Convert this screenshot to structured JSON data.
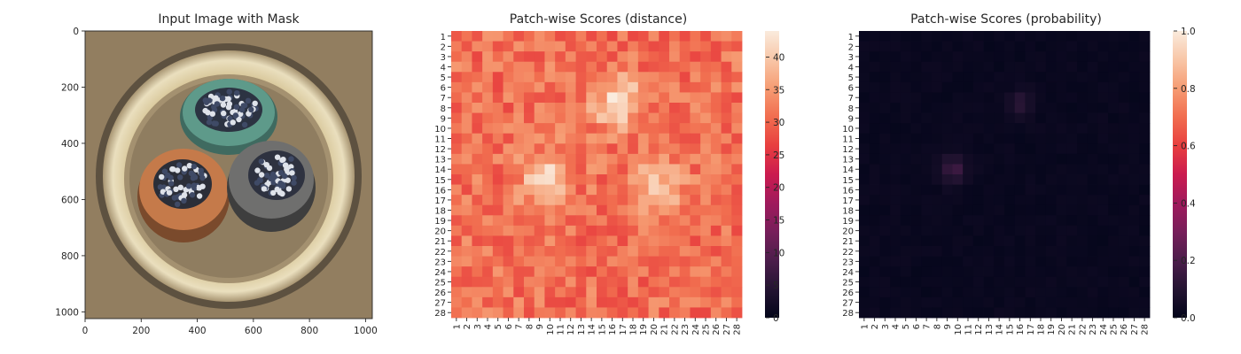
{
  "figure": {
    "panels": [
      {
        "title": "Input Image with Mask",
        "type": "image",
        "x_ticks": [
          "0",
          "200",
          "400",
          "600",
          "800",
          "1000"
        ],
        "y_ticks": [
          "0",
          "200",
          "400",
          "600",
          "800",
          "1000"
        ],
        "colors": {
          "background": "#9a8466",
          "ring_outer": "#6b5d47",
          "ring": "#e6d9b0",
          "cable_teal": "#5e9a8a",
          "cable_orange": "#c57a4a",
          "cable_gray": "#6f6f6e"
        }
      },
      {
        "title": "Patch-wise Scores (distance)",
        "type": "heatmap",
        "row_labels": [
          "1",
          "2",
          "3",
          "4",
          "5",
          "6",
          "7",
          "8",
          "9",
          "10",
          "11",
          "12",
          "13",
          "14",
          "15",
          "16",
          "17",
          "18",
          "19",
          "20",
          "21",
          "22",
          "23",
          "24",
          "25",
          "26",
          "27",
          "28"
        ],
        "col_labels": [
          "1",
          "2",
          "3",
          "4",
          "5",
          "6",
          "7",
          "8",
          "9",
          "10",
          "11",
          "12",
          "13",
          "14",
          "15",
          "16",
          "17",
          "18",
          "19",
          "20",
          "21",
          "22",
          "23",
          "24",
          "25",
          "26",
          "27",
          "28"
        ],
        "colorbar_ticks": [
          "0",
          "5",
          "10",
          "15",
          "20",
          "25",
          "30",
          "35",
          "40"
        ]
      },
      {
        "title": "Patch-wise Scores (probability)",
        "type": "heatmap",
        "row_labels": [
          "1",
          "2",
          "3",
          "4",
          "5",
          "6",
          "7",
          "8",
          "9",
          "10",
          "11",
          "12",
          "13",
          "14",
          "15",
          "16",
          "17",
          "18",
          "19",
          "20",
          "21",
          "22",
          "23",
          "24",
          "25",
          "26",
          "27",
          "28"
        ],
        "col_labels": [
          "1",
          "2",
          "3",
          "4",
          "5",
          "6",
          "7",
          "8",
          "9",
          "10",
          "11",
          "12",
          "13",
          "14",
          "15",
          "16",
          "17",
          "18",
          "19",
          "20",
          "21",
          "22",
          "23",
          "24",
          "25",
          "26",
          "27",
          "28"
        ],
        "colorbar_ticks": [
          "0.0",
          "0.2",
          "0.4",
          "0.6",
          "0.8",
          "1.0"
        ]
      }
    ]
  },
  "chart_data": [
    {
      "type": "image",
      "title": "Input Image with Mask",
      "xlim": [
        0,
        1024
      ],
      "ylim": [
        1024,
        0
      ],
      "x_ticks": [
        0,
        200,
        400,
        600,
        800,
        1000
      ],
      "y_ticks": [
        0,
        200,
        400,
        600,
        800,
        1000
      ]
    },
    {
      "type": "heatmap",
      "title": "Patch-wise Scores (distance)",
      "rows": 28,
      "cols": 28,
      "colorscale": "rocket",
      "vmin": 0,
      "vmax": 44,
      "base_value": 31,
      "hotspots": [
        {
          "row": 7.5,
          "col": 16.5,
          "peak": 44,
          "spread": 1.6
        },
        {
          "row": 15,
          "col": 9.5,
          "peak": 43,
          "spread": 1.6
        },
        {
          "row": 15.5,
          "col": 20.5,
          "peak": 39,
          "spread": 1.8
        }
      ],
      "colorbar_ticks": [
        0,
        5,
        10,
        15,
        20,
        25,
        30,
        35,
        40
      ]
    },
    {
      "type": "heatmap",
      "title": "Patch-wise Scores (probability)",
      "rows": 28,
      "cols": 28,
      "colorscale": "rocket",
      "vmin": 0,
      "vmax": 1,
      "base_value": 0.01,
      "hotspots": [
        {
          "row": 14,
          "col": 9.5,
          "peak": 0.14,
          "spread": 0.9
        },
        {
          "row": 7.5,
          "col": 16,
          "peak": 0.09,
          "spread": 0.9
        }
      ],
      "colorbar_ticks": [
        0.0,
        0.2,
        0.4,
        0.6,
        0.8,
        1.0
      ]
    }
  ]
}
